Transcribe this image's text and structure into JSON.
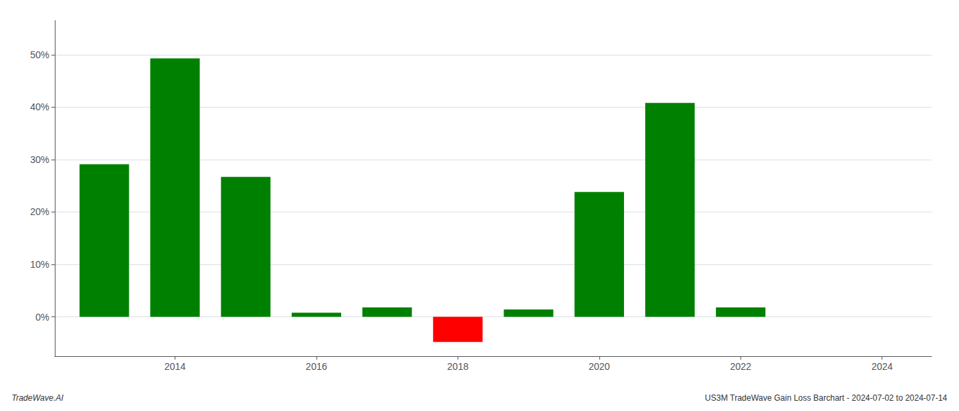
{
  "chart_data": {
    "type": "bar",
    "title": "US3M TradeWave Gain Loss Barchart - 2024-07-02 to 2024-07-14",
    "annotations": [
      "TradeWave.AI"
    ],
    "x": [
      2013,
      2014,
      2015,
      2016,
      2017,
      2018,
      2019,
      2020,
      2021,
      2022,
      2023
    ],
    "values": [
      0.291,
      0.493,
      0.267,
      0.008,
      0.018,
      -0.048,
      0.014,
      0.238,
      0.408,
      0.018,
      null
    ],
    "colors": [
      "#008000",
      "#008000",
      "#008000",
      "#008000",
      "#008000",
      "#ff0000",
      "#008000",
      "#008000",
      "#008000",
      "#008000",
      null
    ],
    "xlim": [
      2012.3,
      2024.7
    ],
    "xticks": [
      2014,
      2016,
      2018,
      2020,
      2022,
      2024
    ],
    "ylim": [
      -0.075,
      0.565
    ],
    "yticks": [
      {
        "value": 0.0,
        "label": "0%"
      },
      {
        "value": 0.1,
        "label": "10%"
      },
      {
        "value": 0.2,
        "label": "20%"
      },
      {
        "value": 0.3,
        "label": "30%"
      },
      {
        "value": 0.4,
        "label": "40%"
      },
      {
        "value": 0.5,
        "label": "50%"
      }
    ],
    "grid": true
  }
}
